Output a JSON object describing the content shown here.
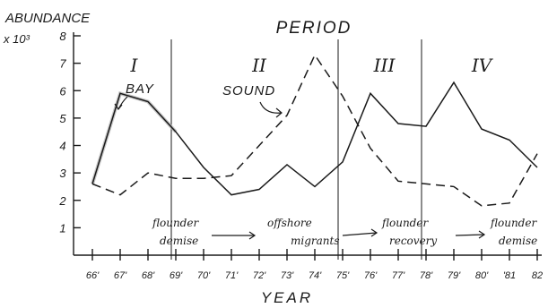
{
  "chart_data": {
    "type": "line",
    "title": "PERIOD",
    "ylabel": "ABUNDANCE",
    "yunit": "x 10³",
    "xlabel": "YEAR",
    "x": [
      "'66",
      "'67",
      "'68",
      "'69",
      "'70",
      "'71",
      "'72",
      "'73",
      "'74",
      "'75",
      "'76",
      "'77",
      "'78",
      "'79",
      "'80",
      "'81",
      "'82"
    ],
    "x_tick_labels": [
      "66'",
      "67'",
      "68'",
      "69'",
      "70'",
      "71'",
      "72'",
      "73'",
      "74'",
      "75'",
      "76'",
      "77'",
      "78'",
      "79'",
      "80'",
      "'81",
      "82"
    ],
    "y_tick_labels": [
      {
        "value": 8,
        "label": "8"
      },
      {
        "value": 7,
        "label": "7"
      },
      {
        "value": 6,
        "label": "6"
      },
      {
        "value": 5,
        "label": "5"
      },
      {
        "value": 4,
        "label": "4"
      },
      {
        "value": 3,
        "label": "3"
      },
      {
        "value": 2,
        "label": "2"
      },
      {
        "value": 1,
        "label": "1"
      }
    ],
    "ylim": [
      0,
      8
    ],
    "series": [
      {
        "name": "BAY",
        "style": "solid",
        "values": [
          2.6,
          5.9,
          5.6,
          4.5,
          3.2,
          2.2,
          2.4,
          3.3,
          2.5,
          3.4,
          5.9,
          4.8,
          4.7,
          6.3,
          4.6,
          4.2,
          3.2
        ]
      },
      {
        "name": "SOUND",
        "style": "dashed",
        "values": [
          2.6,
          2.2,
          3.0,
          2.8,
          2.8,
          2.9,
          4.0,
          5.1,
          7.3,
          5.8,
          3.9,
          2.7,
          2.6,
          2.5,
          1.8,
          1.9,
          3.7
        ]
      }
    ],
    "periods": [
      {
        "label": "I",
        "from": "'66",
        "to": "'69"
      },
      {
        "label": "II",
        "from": "'69",
        "to": "'75"
      },
      {
        "label": "III",
        "from": "'75",
        "to": "'78"
      },
      {
        "label": "IV",
        "from": "'78",
        "to": "'82"
      }
    ],
    "period_boundaries": [
      "'69",
      "'75",
      "'78"
    ],
    "annotations": [
      {
        "line1": "flounder",
        "line2": "demise"
      },
      {
        "line1": "offshore",
        "line2": "migrants"
      },
      {
        "line1": "flounder",
        "line2": "recovery"
      },
      {
        "line1": "flounder",
        "line2": "demise"
      }
    ],
    "grid": false,
    "legend": "inline labels with pointer arrows"
  }
}
